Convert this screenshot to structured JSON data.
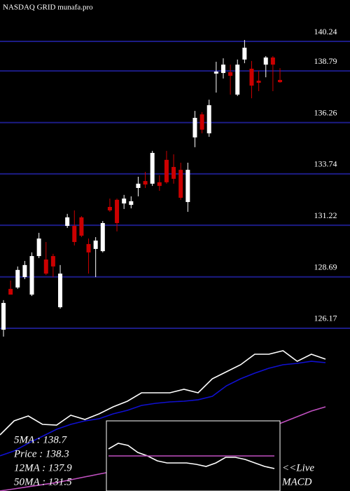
{
  "chart_data": [
    {
      "type": "candlestick",
      "title": "NASDAQ GRID munafa.pro",
      "up_color": "#ffffff",
      "down_color": "#cc0000",
      "grid": true,
      "grid_color": "#1c1c85",
      "ylim": [
        126.1,
        142.27
      ],
      "yticks": [
        140.24,
        138.79,
        136.26,
        133.74,
        131.22,
        128.69,
        126.17
      ],
      "open": [
        126.1,
        128.1,
        128.17,
        128.68,
        127.82,
        129.71,
        129.54,
        129.71,
        127.2,
        131.19,
        131.19,
        131.61,
        130.3,
        130.06,
        129.95,
        132.12,
        132.47,
        132.29,
        132.22,
        133.05,
        133.39,
        133.26,
        133.33,
        134.43,
        134.08,
        133.94,
        132.36,
        135.53,
        136.66,
        135.73,
        138.66,
        138.69,
        138.73,
        137.63,
        139.35,
        138.9,
        138.31,
        139.1,
        139.45,
        138.35
      ],
      "high": [
        127.55,
        128.51,
        129.2,
        129.47,
        129.89,
        130.85,
        130.4,
        129.82,
        129.27,
        131.78,
        131.95,
        131.67,
        130.57,
        130.64,
        131.43,
        132.53,
        132.53,
        132.71,
        132.64,
        133.6,
        133.84,
        134.87,
        133.67,
        134.87,
        134.7,
        134.29,
        134.29,
        136.83,
        136.77,
        137.38,
        139.24,
        139.41,
        139.1,
        139.35,
        140.31,
        139.28,
        138.79,
        139.52,
        139.52,
        138.93
      ],
      "low": [
        125.76,
        127.82,
        128.1,
        128.58,
        127.75,
        129.61,
        128.78,
        128.68,
        127.13,
        131.09,
        130.23,
        130.64,
        128.85,
        128.68,
        129.89,
        131.88,
        130.92,
        132.02,
        132.05,
        132.64,
        133.05,
        133.15,
        132.91,
        133.26,
        133.26,
        132.47,
        131.88,
        135.05,
        135.73,
        135.56,
        137.73,
        138.42,
        137.63,
        137.56,
        139.17,
        137.45,
        137.8,
        138.48,
        137.8,
        138.21
      ],
      "close": [
        127.41,
        127.82,
        129.03,
        129.27,
        129.71,
        130.57,
        128.85,
        129.2,
        128.85,
        131.61,
        130.4,
        130.71,
        129.89,
        130.47,
        131.33,
        131.95,
        131.33,
        132.53,
        132.4,
        133.26,
        133.22,
        134.77,
        133.15,
        133.33,
        133.5,
        132.57,
        133.94,
        136.49,
        135.91,
        137.11,
        138.76,
        139.1,
        138.55,
        139.1,
        139.93,
        138.07,
        138.21,
        139.45,
        139.1,
        138.24
      ]
    },
    {
      "type": "line",
      "ylim": [
        119.3,
        142.68
      ],
      "series": [
        {
          "color": "#ffffff",
          "values": [
            127.43,
            129.47,
            130.18,
            128.96,
            128.86,
            130.28,
            129.67,
            130.48,
            131.5,
            132.31,
            133.53,
            133.53,
            133.53,
            134.04,
            133.53,
            135.56,
            136.58,
            137.6,
            139.12,
            139.12,
            139.63,
            138.1,
            139.12,
            138.41
          ]
        },
        {
          "color": "#1010d0",
          "values": [
            124.39,
            125.1,
            126.22,
            127.23,
            128.25,
            128.96,
            129.47,
            129.77,
            130.48,
            130.99,
            131.7,
            132.01,
            132.21,
            132.31,
            132.52,
            133.02,
            134.55,
            135.56,
            136.38,
            137.09,
            137.6,
            137.8,
            138.1,
            137.9
          ]
        },
        {
          "color": "#c050c0",
          "values": [
            119.31,
            119.61,
            119.92,
            120.22,
            120.53,
            120.93,
            121.34,
            121.75,
            122.15,
            122.56,
            122.96,
            123.57,
            124.18,
            124.79,
            125.4,
            126.01,
            126.62,
            127.23,
            127.84,
            128.45,
            129.26,
            130.08,
            130.89,
            131.5
          ]
        }
      ],
      "legend": [
        "5MA : 138.7",
        "Price : 138.3",
        "12MA : 137.9",
        "50MA : 131.5"
      ]
    },
    {
      "type": "line",
      "title": "MACD",
      "annotation": "<<Live",
      "ylim": [
        -1,
        1
      ],
      "series": [
        {
          "color": "#ffffff",
          "values": [
            0.2,
            0.36,
            0.3,
            0.1,
            0,
            -0.14,
            -0.2,
            -0.2,
            -0.2,
            -0.24,
            -0.3,
            -0.2,
            -0.04,
            -0.04,
            -0.1,
            -0.2,
            -0.3,
            -0.36
          ]
        },
        {
          "color": "#c050c0",
          "values": [
            0,
            0
          ]
        }
      ]
    }
  ]
}
